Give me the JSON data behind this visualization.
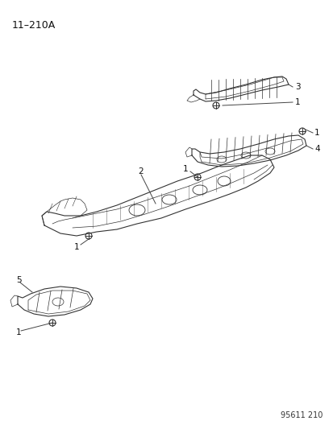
{
  "title_label": "11–210A",
  "footer_label": "95611 210",
  "background_color": "#ffffff",
  "fig_width": 4.14,
  "fig_height": 5.33,
  "dpi": 100,
  "title_fontsize": 9,
  "footer_fontsize": 7,
  "label_fontsize": 7.5,
  "line_color": "#333333",
  "label_color": "#111111"
}
